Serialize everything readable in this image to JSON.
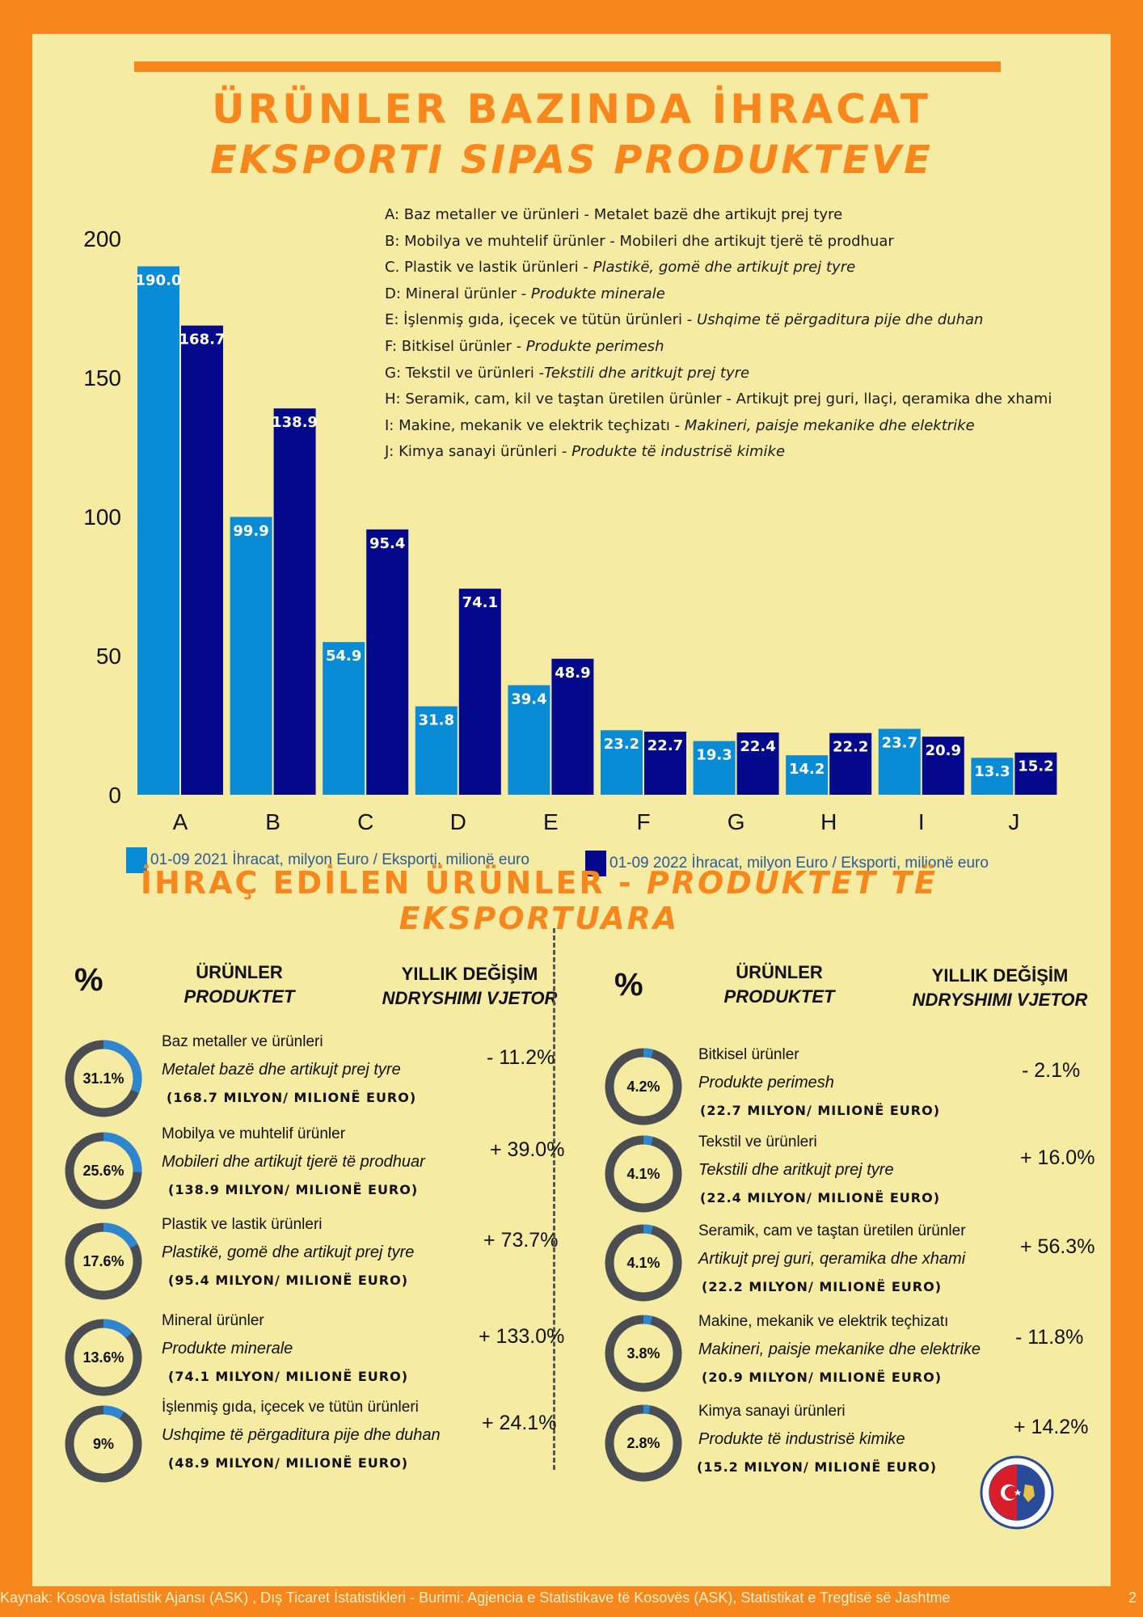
{
  "title": {
    "line1": "ÜRÜNLER BAZINDA İHRACAT",
    "line2": "EKSPORTI SIPAS PRODUKTEVE"
  },
  "colors": {
    "accent": "#F7861C",
    "panel": "#F5EBA3",
    "series_2021": "#0A8BD6",
    "series_2022": "#050A8C",
    "donut_track": "#4A4D52",
    "donut_fill": "#2E86D0"
  },
  "category_legend": [
    {
      "tr": "A: Baz metaller ve ürünleri - Metalet bazë dhe artikujt prej tyre",
      "al": ""
    },
    {
      "tr": "B: Mobilya ve muhtelif ürünler - Mobileri dhe artikujt tjerë të prodhuar",
      "al": ""
    },
    {
      "tr": "C. Plastik ve lastik ürünleri - ",
      "al": "Plastikë, gomë dhe artikujt prej tyre"
    },
    {
      "tr": "D: Mineral ürünler - ",
      "al": "Produkte minerale"
    },
    {
      "tr": "E: İşlenmiş gıda, içecek ve tütün ürünleri - ",
      "al": "Ushqime të përgaditura  pije dhe duhan"
    },
    {
      "tr": "F: Bitkisel ürünler - ",
      "al": "Produkte perimesh"
    },
    {
      "tr": "G: Tekstil ve ürünleri -",
      "al": "Tekstili dhe aritkujt prej tyre"
    },
    {
      "tr": "H: Seramik, cam, kil ve taştan üretilen ürünler - Artikujt prej guri, llaçi, qeramika dhe xhami",
      "al": ""
    },
    {
      "tr": "I:  Makine, mekanik ve elektrik teçhizatı - ",
      "al": "Makineri, paisje mekanike dhe elektrike"
    },
    {
      "tr": "J: Kimya sanayi ürünleri - ",
      "al": "Produkte të industrisë kimike"
    }
  ],
  "chart_data": {
    "type": "bar",
    "categories": [
      "A",
      "B",
      "C",
      "D",
      "E",
      "F",
      "G",
      "H",
      "I",
      "J"
    ],
    "series": [
      {
        "name": "01-09 2021 İhracat, milyon Euro / Eksporti, milionë euro",
        "values": [
          190.0,
          99.9,
          54.9,
          31.8,
          39.4,
          23.2,
          19.3,
          14.2,
          23.7,
          13.3
        ]
      },
      {
        "name": "01-09 2022 İhracat, milyon Euro / Eksporti, milionë euro",
        "values": [
          168.7,
          138.9,
          95.4,
          74.1,
          48.9,
          22.7,
          22.4,
          22.2,
          20.9,
          15.2
        ]
      }
    ],
    "yticks": [
      0,
      50,
      100,
      150,
      200
    ],
    "ylim": [
      0,
      200
    ],
    "xlabel": "",
    "ylabel": "",
    "grid": false,
    "legend_position": "bottom"
  },
  "section2": {
    "title_tr": "İHRAÇ EDİLEN ÜRÜNLER - ",
    "title_al": "PRODUKTET TË EKSPORTUARA"
  },
  "headers": {
    "pct": "%",
    "products_tr": "ÜRÜNLER",
    "products_al": "PRODUKTET",
    "change_tr": "YILLIK DEĞİŞİM",
    "change_al": "NDRYSHIMI VJETOR"
  },
  "products_left": [
    {
      "share": 31.1,
      "share_label": "31.1%",
      "tr": "Baz metaller ve ürünleri",
      "al": "Metalet bazë dhe artikujt prej tyre",
      "value": "(168.7 MILYON/ MILIONË EURO)",
      "change": "- 11.2%"
    },
    {
      "share": 25.6,
      "share_label": "25.6%",
      "tr": "Mobilya ve muhtelif ürünler",
      "al": "Mobileri dhe artikujt tjerë të prodhuar",
      "value": "(138.9 MILYON/ MILIONË EURO)",
      "change": "+ 39.0%"
    },
    {
      "share": 17.6,
      "share_label": "17.6%",
      "tr": "Plastik ve lastik ürünleri",
      "al": "Plastikë, gomë dhe artikujt prej tyre",
      "value": "(95.4 MILYON/ MILIONË EURO)",
      "change": "+ 73.7%"
    },
    {
      "share": 13.6,
      "share_label": "13.6%",
      "tr": "Mineral ürünler",
      "al": "Produkte minerale",
      "value": "(74.1 MILYON/ MILIONË EURO)",
      "change": "+ 133.0%"
    },
    {
      "share": 9,
      "share_label": "9%",
      "tr": "İşlenmiş gıda, içecek ve tütün ürünleri",
      "al": "Ushqime të përgaditura pije dhe duhan",
      "value": "(48.9 MILYON/ MILIONË EURO)",
      "change": "+ 24.1%"
    }
  ],
  "products_right": [
    {
      "share": 4.2,
      "share_label": "4.2%",
      "tr": "Bitkisel ürünler",
      "al": "Produkte perimesh",
      "value": "(22.7 MILYON/ MILIONË EURO)",
      "change": "- 2.1%"
    },
    {
      "share": 4.1,
      "share_label": "4.1%",
      "tr": "Tekstil ve ürünleri",
      "al": "Tekstili dhe aritkujt prej tyre",
      "value": "(22.4 MILYON/ MILIONË EURO)",
      "change": "+ 16.0%"
    },
    {
      "share": 4.1,
      "share_label": "4.1%",
      "tr": "Seramik, cam ve taştan üretilen ürünler",
      "al": "Artikujt prej guri, qeramika dhe xhami",
      "value": "(22.2 MILYON/ MILIONË EURO)",
      "change": "+ 56.3%"
    },
    {
      "share": 3.8,
      "share_label": "3.8%",
      "tr": "Makine, mekanik ve elektrik teçhizatı",
      "al": "Makineri, paisje mekanike dhe elektrike",
      "value": "(20.9 MILYON/ MILIONË EURO)",
      "change": "- 11.8%"
    },
    {
      "share": 2.8,
      "share_label": "2.8%",
      "tr": "Kimya sanayi ürünleri",
      "al": "Produkte të industrisë kimike",
      "value": "(15.2 MILYON/ MILIONË EURO)",
      "change": "+ 14.2%"
    }
  ],
  "logo": {
    "icon": "chamber-seal-logo"
  },
  "footer": {
    "source": "Kaynak: Kosova İstatistik Ajansı (ASK) ,  Dış Ticaret İstatistikleri -   Burimi: Agjencia e Statistikave të Kosovës (ASK), Statistikat e Tregtisë së Jashtme",
    "page": "2"
  }
}
